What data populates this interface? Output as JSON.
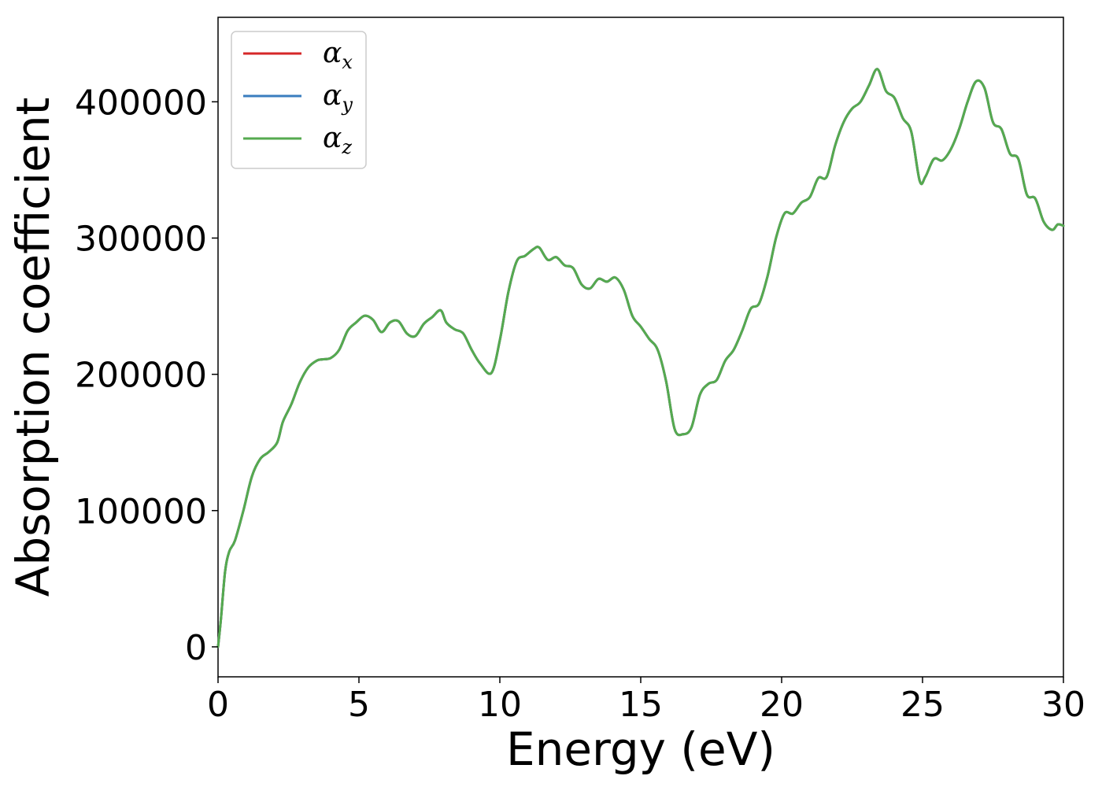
{
  "chart_data": {
    "type": "line",
    "title": "",
    "xlabel": "Energy (eV)",
    "ylabel": "Absorption coefficient",
    "xlim": [
      0,
      30
    ],
    "ylim": [
      -22000,
      462000
    ],
    "x_ticks": [
      "0",
      "5",
      "10",
      "15",
      "20",
      "25",
      "30"
    ],
    "x_tick_values": [
      0,
      5,
      10,
      15,
      20,
      25,
      30
    ],
    "y_ticks": [
      "0",
      "100000",
      "200000",
      "300000",
      "400000"
    ],
    "y_tick_values": [
      0,
      100000,
      200000,
      300000,
      400000
    ],
    "grid": false,
    "legend_position": "top-left",
    "series": [
      {
        "name": "α",
        "subscript": "x",
        "color": "#d62728",
        "values_ref": "shared"
      },
      {
        "name": "α",
        "subscript": "y",
        "color": "#3a7dbf",
        "values_ref": "shared"
      },
      {
        "name": "α",
        "subscript": "z",
        "color": "#55aa4f",
        "values_ref": "shared"
      }
    ],
    "x": [
      0,
      0.1,
      0.25,
      0.4,
      0.6,
      0.9,
      1.2,
      1.5,
      1.8,
      2.1,
      2.3,
      2.6,
      2.9,
      3.2,
      3.5,
      3.7,
      4.0,
      4.3,
      4.6,
      4.9,
      5.2,
      5.5,
      5.8,
      6.1,
      6.4,
      6.7,
      7.0,
      7.3,
      7.6,
      7.9,
      8.1,
      8.4,
      8.7,
      9.0,
      9.3,
      9.7,
      10.0,
      10.3,
      10.6,
      10.9,
      11.2,
      11.4,
      11.7,
      12.0,
      12.3,
      12.6,
      12.9,
      13.2,
      13.5,
      13.8,
      14.1,
      14.4,
      14.7,
      15.0,
      15.3,
      15.6,
      15.9,
      16.2,
      16.5,
      16.8,
      17.1,
      17.4,
      17.7,
      18.0,
      18.3,
      18.6,
      18.9,
      19.2,
      19.5,
      19.8,
      20.1,
      20.4,
      20.7,
      21.0,
      21.3,
      21.6,
      21.9,
      22.2,
      22.5,
      22.8,
      23.1,
      23.4,
      23.7,
      24.0,
      24.3,
      24.6,
      24.9,
      25.1,
      25.4,
      25.7,
      26.0,
      26.3,
      26.6,
      26.9,
      27.2,
      27.5,
      27.8,
      28.1,
      28.4,
      28.7,
      29.0,
      29.3,
      29.6,
      29.8,
      30.0
    ],
    "values": [
      0,
      20000,
      55000,
      70000,
      78000,
      100000,
      125000,
      138000,
      143000,
      150000,
      165000,
      178000,
      194000,
      205000,
      210000,
      211000,
      212000,
      218000,
      232000,
      238000,
      243000,
      240000,
      231000,
      238000,
      239000,
      230000,
      228000,
      237000,
      242000,
      247000,
      238000,
      233000,
      230000,
      218000,
      208000,
      201000,
      225000,
      260000,
      283000,
      287000,
      292000,
      293000,
      284000,
      286000,
      280000,
      278000,
      266000,
      263000,
      270000,
      268000,
      271000,
      262000,
      243000,
      235000,
      226000,
      218000,
      195000,
      160000,
      156000,
      161000,
      185000,
      193000,
      196000,
      210000,
      218000,
      232000,
      248000,
      252000,
      272000,
      300000,
      318000,
      318000,
      326000,
      330000,
      344000,
      345000,
      368000,
      385000,
      395000,
      400000,
      412000,
      424000,
      408000,
      403000,
      388000,
      378000,
      342000,
      345000,
      358000,
      357000,
      365000,
      380000,
      400000,
      415000,
      410000,
      385000,
      380000,
      362000,
      358000,
      332000,
      329000,
      312000,
      306000,
      310000,
      309000
    ]
  }
}
